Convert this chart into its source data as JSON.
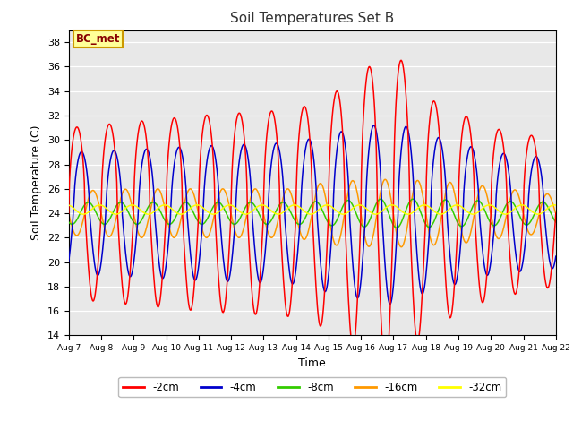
{
  "title": "Soil Temperatures Set B",
  "xlabel": "Time",
  "ylabel": "Soil Temperature (C)",
  "ylim": [
    14,
    39
  ],
  "yticks": [
    14,
    16,
    18,
    20,
    22,
    24,
    26,
    28,
    30,
    32,
    34,
    36,
    38
  ],
  "background_color": "#e8e8e8",
  "annotation_text": "BC_met",
  "annotation_bg": "#ffff99",
  "annotation_border": "#cc9900",
  "series_colors": {
    "-2cm": "#ff0000",
    "-4cm": "#0000cc",
    "-8cm": "#33cc00",
    "-16cm": "#ff9900",
    "-32cm": "#ffff00"
  },
  "legend_labels": [
    "-2cm",
    "-4cm",
    "-8cm",
    "-16cm",
    "-32cm"
  ],
  "xtick_labels": [
    "Aug 7",
    "Aug 8",
    "Aug 9",
    "Aug 10",
    "Aug 11",
    "Aug 12",
    "Aug 13",
    "Aug 14",
    "Aug 15",
    "Aug 16",
    "Aug 17",
    "Aug 18",
    "Aug 19",
    "Aug 20",
    "Aug 21",
    "Aug 22"
  ],
  "xtick_positions": [
    0,
    1,
    2,
    3,
    4,
    5,
    6,
    7,
    8,
    9,
    10,
    11,
    12,
    13,
    14,
    15
  ],
  "x_start": 0,
  "x_end": 15,
  "num_points": 720
}
